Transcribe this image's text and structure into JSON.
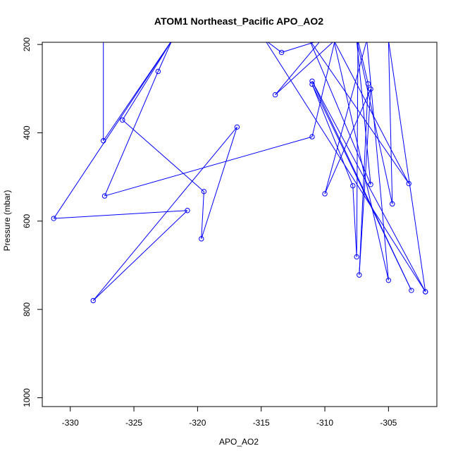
{
  "chart_data": {
    "type": "line",
    "title": "ATOM1 Northeast_Pacific APO_AO2",
    "xlabel": "APO_AO2",
    "ylabel": "Pressure (mbar)",
    "xlim": [
      -332.2,
      -301.2
    ],
    "ylim": [
      1020,
      195
    ],
    "y_inverted": true,
    "x_ticks": [
      -330,
      -325,
      -320,
      -315,
      -310,
      -305
    ],
    "y_ticks": [
      200,
      400,
      600,
      800,
      1000
    ],
    "series_color": "#0000ff",
    "marker": "open-circle",
    "points": [
      {
        "x": -327.4,
        "y": 190
      },
      {
        "x": -327.4,
        "y": 418
      },
      {
        "x": -322.0,
        "y": 190
      },
      {
        "x": -331.3,
        "y": 594
      },
      {
        "x": -320.8,
        "y": 576
      },
      {
        "x": -328.2,
        "y": 780
      },
      {
        "x": -316.9,
        "y": 387
      },
      {
        "x": -319.7,
        "y": 640
      },
      {
        "x": -319.5,
        "y": 533
      },
      {
        "x": -325.9,
        "y": 371
      },
      {
        "x": -322.0,
        "y": 190
      },
      {
        "x": -323.1,
        "y": 261
      },
      {
        "x": -327.3,
        "y": 543
      },
      {
        "x": -311.0,
        "y": 409
      },
      {
        "x": -309.2,
        "y": 190
      },
      {
        "x": -313.9,
        "y": 314
      },
      {
        "x": -310.3,
        "y": 190
      },
      {
        "x": -313.4,
        "y": 218
      },
      {
        "x": -314.7,
        "y": 190
      },
      {
        "x": -302.1,
        "y": 760
      },
      {
        "x": -311.0,
        "y": 283
      },
      {
        "x": -303.2,
        "y": 757
      },
      {
        "x": -311.0,
        "y": 290
      },
      {
        "x": -307.8,
        "y": 520
      },
      {
        "x": -307.5,
        "y": 681
      },
      {
        "x": -307.4,
        "y": 190
      },
      {
        "x": -306.6,
        "y": 289
      },
      {
        "x": -307.3,
        "y": 722
      },
      {
        "x": -306.4,
        "y": 301
      },
      {
        "x": -310.0,
        "y": 538
      },
      {
        "x": -306.7,
        "y": 190
      },
      {
        "x": -305.0,
        "y": 734
      },
      {
        "x": -309.3,
        "y": 190
      },
      {
        "x": -303.4,
        "y": 515
      },
      {
        "x": -311.2,
        "y": 190
      },
      {
        "x": -306.4,
        "y": 517
      },
      {
        "x": -307.5,
        "y": 190
      },
      {
        "x": -304.7,
        "y": 561
      },
      {
        "x": -305.0,
        "y": 190
      },
      {
        "x": -302.1,
        "y": 760
      }
    ]
  }
}
